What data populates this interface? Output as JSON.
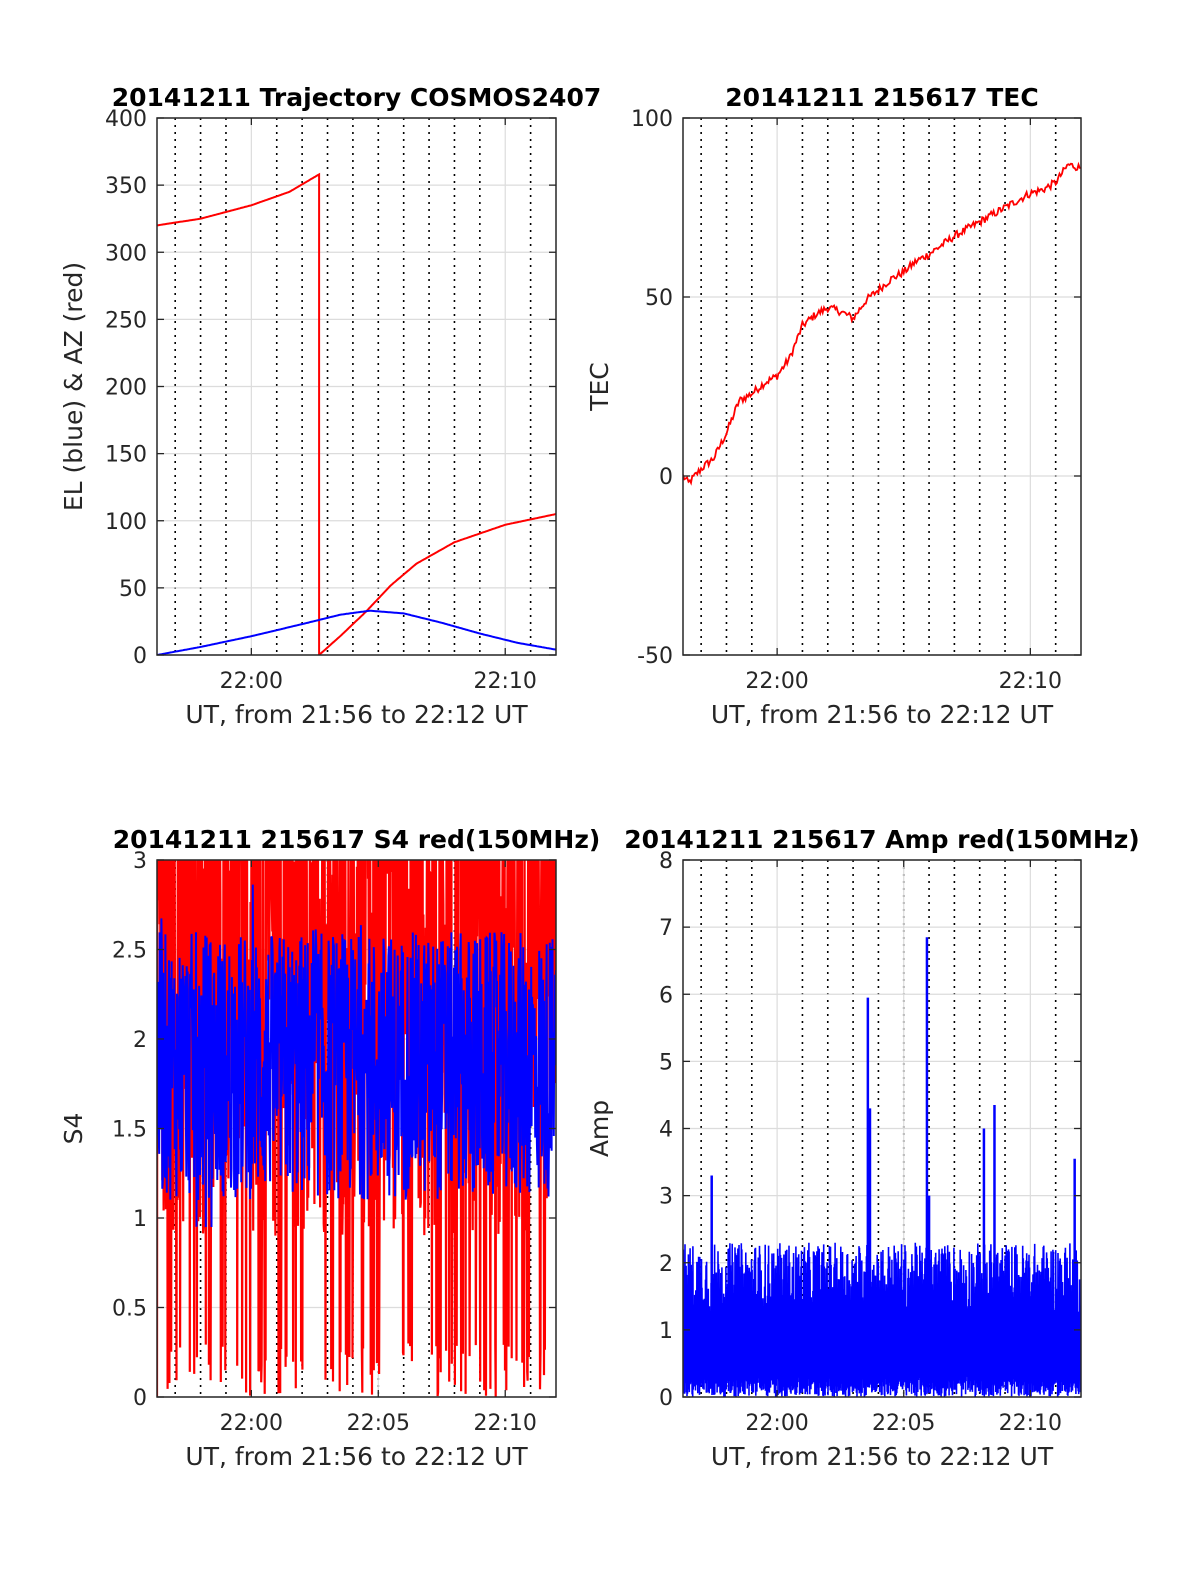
{
  "colors": {
    "red": "#ff0000",
    "blue": "#0000ff",
    "grid": "#000000",
    "axis": "#262626"
  },
  "chart_data": [
    {
      "type": "line",
      "title": "20141211 Trajectory COSMOS2407",
      "xlabel": "UT, from 21:56 to 22:12 UT",
      "ylabel": "EL (blue) & AZ (red)",
      "xlim": [
        "21:56:17",
        "22:12:00"
      ],
      "ylim": [
        0,
        400
      ],
      "yticks": [
        0,
        50,
        100,
        150,
        200,
        250,
        300,
        350,
        400
      ],
      "ytick_labels": [
        "0",
        "50",
        "100",
        "150",
        "200",
        "250",
        "300",
        "350",
        "400"
      ],
      "xticks": [
        "22:00",
        "22:10"
      ],
      "grid": "on",
      "series": [
        {
          "color": "red",
          "x": [
            "21:56:17",
            "21:58:00",
            "22:00:00",
            "22:01:30",
            "22:02:40",
            "22:02:40",
            "22:03:30",
            "22:04:30",
            "22:05:30",
            "22:06:30",
            "22:08:00",
            "22:10:00",
            "22:12:00"
          ],
          "values": [
            320,
            325,
            335,
            345,
            358,
            0,
            14,
            32,
            52,
            68,
            84,
            97,
            105
          ]
        },
        {
          "color": "blue",
          "x": [
            "21:56:17",
            "21:58:00",
            "22:00:00",
            "22:02:00",
            "22:03:30",
            "22:04:40",
            "22:06:00",
            "22:07:30",
            "22:09:00",
            "22:10:30",
            "22:12:00"
          ],
          "values": [
            0,
            6,
            14,
            23,
            30,
            33,
            31,
            24,
            16,
            9,
            4
          ]
        }
      ]
    },
    {
      "type": "line",
      "title": "20141211 215617 TEC",
      "xlabel": "UT, from 21:56 to 22:12 UT",
      "ylabel": "TEC",
      "xlim": [
        "21:56:17",
        "22:12:00"
      ],
      "ylim": [
        -50,
        100
      ],
      "yticks": [
        -50,
        0,
        50,
        100
      ],
      "ytick_labels": [
        "-50",
        "0",
        "50",
        "100"
      ],
      "xticks": [
        "22:00",
        "22:10"
      ],
      "grid": "on",
      "series": [
        {
          "color": "red",
          "x": [
            "21:56:17",
            "21:56:30",
            "21:57:00",
            "21:57:30",
            "21:58:00",
            "21:58:30",
            "21:59:00",
            "21:59:30",
            "22:00:00",
            "22:00:30",
            "22:01:00",
            "22:01:30",
            "22:02:00",
            "22:02:30",
            "22:03:00",
            "22:03:30",
            "22:04:00",
            "22:04:30",
            "22:05:00",
            "22:05:30",
            "22:06:00",
            "22:07:00",
            "22:08:00",
            "22:09:00",
            "22:10:00",
            "22:10:30",
            "22:11:00",
            "22:11:30",
            "22:12:00"
          ],
          "values": [
            0,
            -2,
            2,
            5,
            12,
            21,
            23,
            26,
            28,
            33,
            42,
            45,
            47,
            46,
            44,
            49,
            52,
            55,
            57,
            60,
            62,
            67,
            71,
            75,
            79,
            80,
            82,
            87,
            86
          ]
        }
      ]
    },
    {
      "type": "line",
      "title": "20141211 215617 S4 red(150MHz)",
      "xlabel": "UT, from 21:56 to 22:12 UT",
      "ylabel": "S4",
      "xlim": [
        "21:56:17",
        "22:12:00"
      ],
      "ylim": [
        0,
        3
      ],
      "yticks": [
        0,
        0.5,
        1,
        1.5,
        2,
        2.5,
        3
      ],
      "ytick_labels": [
        "0",
        "0.5",
        "1",
        "1.5",
        "2",
        "2.5",
        "3"
      ],
      "xticks": [
        "22:00",
        "22:05",
        "22:10"
      ],
      "grid": "on",
      "series": [
        {
          "color": "red",
          "pattern": "noisy, frequently saturating between 0 and above 3",
          "range": [
            0,
            3
          ]
        },
        {
          "color": "blue",
          "pattern": "noisy",
          "range": [
            0.95,
            2.9
          ],
          "mean": 1.85
        }
      ]
    },
    {
      "type": "line",
      "title": "20141211 215617 Amp red(150MHz)",
      "xlabel": "UT, from 21:56 to 22:12 UT",
      "ylabel": "Amp",
      "xlim": [
        "21:56:17",
        "22:12:00"
      ],
      "ylim": [
        0,
        8
      ],
      "yticks": [
        0,
        1,
        2,
        3,
        4,
        5,
        6,
        7,
        8
      ],
      "ytick_labels": [
        "0",
        "1",
        "2",
        "3",
        "4",
        "5",
        "6",
        "7",
        "8"
      ],
      "xticks": [
        "22:00",
        "22:05",
        "22:10"
      ],
      "grid": "on",
      "series": [
        {
          "color": "blue",
          "pattern": "dense noise from 0 to about 2.3",
          "spikes": [
            {
              "x": "22:03:35",
              "value": 5.95
            },
            {
              "x": "22:03:40",
              "value": 4.3
            },
            {
              "x": "22:05:55",
              "value": 6.85
            },
            {
              "x": "22:08:35",
              "value": 4.35
            },
            {
              "x": "22:08:10",
              "value": 4.0
            },
            {
              "x": "21:57:25",
              "value": 3.3
            },
            {
              "x": "22:11:45",
              "value": 3.55
            },
            {
              "x": "22:06:00",
              "value": 3.0
            }
          ]
        }
      ]
    }
  ]
}
